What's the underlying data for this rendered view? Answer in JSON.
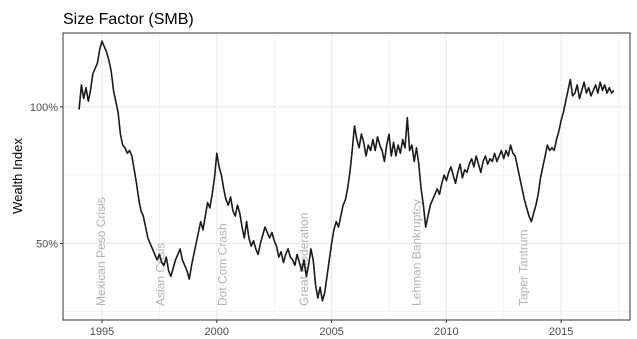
{
  "chart_data": {
    "type": "line",
    "title": "Size Factor (SMB)",
    "xlabel": "",
    "ylabel": "Wealth Index",
    "xlim": [
      1993.3,
      2018.0
    ],
    "ylim": [
      0.22,
      1.27
    ],
    "x_ticks": [
      1995,
      2000,
      2005,
      2010,
      2015
    ],
    "x_tick_labels": [
      "1995",
      "2000",
      "2005",
      "2010",
      "2015"
    ],
    "y_ticks": [
      0.5,
      1.0
    ],
    "y_tick_labels": [
      "50%",
      "100%"
    ],
    "y_minor_ticks": [
      0.25,
      0.75
    ],
    "grid": true,
    "colors": {
      "line": "#1a1a1a",
      "grid": "#ebebeb",
      "event_text": "#b3b3b3",
      "frame": "#333333"
    },
    "events": [
      {
        "label": "Mexican Peso Crisis",
        "x": 1994.95
      },
      {
        "label": "Asian Crisis",
        "x": 1997.55
      },
      {
        "label": "Dot Com Crash",
        "x": 2000.25
      },
      {
        "label": "Great Moderation",
        "x": 2003.8
      },
      {
        "label": "Lehman Bankruptcy",
        "x": 2008.7
      },
      {
        "label": "Taper Tantrum",
        "x": 2013.35
      }
    ],
    "series": [
      {
        "points": [
          [
            1994.0,
            0.99
          ],
          [
            1994.1,
            1.08
          ],
          [
            1994.2,
            1.03
          ],
          [
            1994.3,
            1.07
          ],
          [
            1994.4,
            1.02
          ],
          [
            1994.5,
            1.06
          ],
          [
            1994.6,
            1.12
          ],
          [
            1994.7,
            1.14
          ],
          [
            1994.8,
            1.16
          ],
          [
            1994.9,
            1.21
          ],
          [
            1995.0,
            1.24
          ],
          [
            1995.1,
            1.22
          ],
          [
            1995.2,
            1.2
          ],
          [
            1995.3,
            1.17
          ],
          [
            1995.4,
            1.13
          ],
          [
            1995.5,
            1.06
          ],
          [
            1995.6,
            1.02
          ],
          [
            1995.7,
            0.98
          ],
          [
            1995.8,
            0.9
          ],
          [
            1995.9,
            0.86
          ],
          [
            1996.0,
            0.85
          ],
          [
            1996.1,
            0.83
          ],
          [
            1996.2,
            0.84
          ],
          [
            1996.3,
            0.82
          ],
          [
            1996.4,
            0.77
          ],
          [
            1996.5,
            0.72
          ],
          [
            1996.6,
            0.66
          ],
          [
            1996.7,
            0.62
          ],
          [
            1996.8,
            0.6
          ],
          [
            1996.9,
            0.56
          ],
          [
            1997.0,
            0.52
          ],
          [
            1997.1,
            0.5
          ],
          [
            1997.2,
            0.48
          ],
          [
            1997.3,
            0.46
          ],
          [
            1997.4,
            0.44
          ],
          [
            1997.5,
            0.46
          ],
          [
            1997.6,
            0.43
          ],
          [
            1997.7,
            0.42
          ],
          [
            1997.8,
            0.45
          ],
          [
            1997.9,
            0.4
          ],
          [
            1998.0,
            0.38
          ],
          [
            1998.1,
            0.41
          ],
          [
            1998.2,
            0.44
          ],
          [
            1998.3,
            0.46
          ],
          [
            1998.4,
            0.48
          ],
          [
            1998.5,
            0.44
          ],
          [
            1998.6,
            0.42
          ],
          [
            1998.7,
            0.4
          ],
          [
            1998.8,
            0.37
          ],
          [
            1998.9,
            0.42
          ],
          [
            1999.0,
            0.46
          ],
          [
            1999.1,
            0.5
          ],
          [
            1999.2,
            0.54
          ],
          [
            1999.3,
            0.58
          ],
          [
            1999.4,
            0.55
          ],
          [
            1999.5,
            0.6
          ],
          [
            1999.6,
            0.65
          ],
          [
            1999.7,
            0.63
          ],
          [
            1999.8,
            0.68
          ],
          [
            1999.9,
            0.74
          ],
          [
            2000.0,
            0.83
          ],
          [
            2000.1,
            0.78
          ],
          [
            2000.2,
            0.75
          ],
          [
            2000.3,
            0.7
          ],
          [
            2000.4,
            0.66
          ],
          [
            2000.5,
            0.64
          ],
          [
            2000.6,
            0.67
          ],
          [
            2000.7,
            0.62
          ],
          [
            2000.8,
            0.6
          ],
          [
            2000.9,
            0.64
          ],
          [
            2001.0,
            0.61
          ],
          [
            2001.1,
            0.56
          ],
          [
            2001.2,
            0.52
          ],
          [
            2001.3,
            0.58
          ],
          [
            2001.4,
            0.52
          ],
          [
            2001.5,
            0.49
          ],
          [
            2001.6,
            0.51
          ],
          [
            2001.7,
            0.48
          ],
          [
            2001.8,
            0.46
          ],
          [
            2001.9,
            0.5
          ],
          [
            2002.0,
            0.53
          ],
          [
            2002.1,
            0.56
          ],
          [
            2002.2,
            0.54
          ],
          [
            2002.3,
            0.52
          ],
          [
            2002.4,
            0.54
          ],
          [
            2002.5,
            0.51
          ],
          [
            2002.6,
            0.49
          ],
          [
            2002.7,
            0.45
          ],
          [
            2002.8,
            0.47
          ],
          [
            2002.9,
            0.43
          ],
          [
            2003.0,
            0.46
          ],
          [
            2003.1,
            0.48
          ],
          [
            2003.2,
            0.45
          ],
          [
            2003.3,
            0.44
          ],
          [
            2003.4,
            0.42
          ],
          [
            2003.5,
            0.46
          ],
          [
            2003.6,
            0.43
          ],
          [
            2003.7,
            0.4
          ],
          [
            2003.8,
            0.44
          ],
          [
            2003.9,
            0.38
          ],
          [
            2004.0,
            0.42
          ],
          [
            2004.1,
            0.48
          ],
          [
            2004.2,
            0.44
          ],
          [
            2004.3,
            0.35
          ],
          [
            2004.4,
            0.3
          ],
          [
            2004.5,
            0.34
          ],
          [
            2004.6,
            0.29
          ],
          [
            2004.7,
            0.32
          ],
          [
            2004.8,
            0.38
          ],
          [
            2004.9,
            0.44
          ],
          [
            2005.0,
            0.5
          ],
          [
            2005.1,
            0.55
          ],
          [
            2005.2,
            0.58
          ],
          [
            2005.3,
            0.56
          ],
          [
            2005.4,
            0.6
          ],
          [
            2005.5,
            0.64
          ],
          [
            2005.6,
            0.66
          ],
          [
            2005.7,
            0.7
          ],
          [
            2005.8,
            0.76
          ],
          [
            2005.9,
            0.84
          ],
          [
            2006.0,
            0.93
          ],
          [
            2006.1,
            0.88
          ],
          [
            2006.2,
            0.85
          ],
          [
            2006.3,
            0.9
          ],
          [
            2006.4,
            0.87
          ],
          [
            2006.5,
            0.82
          ],
          [
            2006.6,
            0.86
          ],
          [
            2006.7,
            0.84
          ],
          [
            2006.8,
            0.88
          ],
          [
            2006.9,
            0.84
          ],
          [
            2007.0,
            0.89
          ],
          [
            2007.1,
            0.86
          ],
          [
            2007.2,
            0.84
          ],
          [
            2007.3,
            0.8
          ],
          [
            2007.4,
            0.86
          ],
          [
            2007.5,
            0.9
          ],
          [
            2007.6,
            0.82
          ],
          [
            2007.7,
            0.87
          ],
          [
            2007.8,
            0.82
          ],
          [
            2007.9,
            0.86
          ],
          [
            2008.0,
            0.83
          ],
          [
            2008.1,
            0.88
          ],
          [
            2008.2,
            0.85
          ],
          [
            2008.3,
            0.96
          ],
          [
            2008.4,
            0.84
          ],
          [
            2008.5,
            0.86
          ],
          [
            2008.6,
            0.8
          ],
          [
            2008.7,
            0.85
          ],
          [
            2008.8,
            0.79
          ],
          [
            2008.9,
            0.7
          ],
          [
            2009.0,
            0.64
          ],
          [
            2009.1,
            0.56
          ],
          [
            2009.2,
            0.6
          ],
          [
            2009.3,
            0.64
          ],
          [
            2009.4,
            0.66
          ],
          [
            2009.5,
            0.68
          ],
          [
            2009.6,
            0.7
          ],
          [
            2009.7,
            0.68
          ],
          [
            2009.8,
            0.72
          ],
          [
            2009.9,
            0.75
          ],
          [
            2010.0,
            0.73
          ],
          [
            2010.1,
            0.76
          ],
          [
            2010.2,
            0.78
          ],
          [
            2010.3,
            0.75
          ],
          [
            2010.4,
            0.72
          ],
          [
            2010.5,
            0.76
          ],
          [
            2010.6,
            0.79
          ],
          [
            2010.7,
            0.74
          ],
          [
            2010.8,
            0.77
          ],
          [
            2010.9,
            0.76
          ],
          [
            2011.0,
            0.79
          ],
          [
            2011.1,
            0.81
          ],
          [
            2011.2,
            0.78
          ],
          [
            2011.3,
            0.82
          ],
          [
            2011.4,
            0.79
          ],
          [
            2011.5,
            0.76
          ],
          [
            2011.6,
            0.8
          ],
          [
            2011.7,
            0.82
          ],
          [
            2011.8,
            0.79
          ],
          [
            2011.9,
            0.81
          ],
          [
            2012.0,
            0.8
          ],
          [
            2012.1,
            0.83
          ],
          [
            2012.2,
            0.8
          ],
          [
            2012.3,
            0.82
          ],
          [
            2012.4,
            0.84
          ],
          [
            2012.5,
            0.81
          ],
          [
            2012.6,
            0.84
          ],
          [
            2012.7,
            0.82
          ],
          [
            2012.8,
            0.86
          ],
          [
            2012.9,
            0.83
          ],
          [
            2013.0,
            0.82
          ],
          [
            2013.1,
            0.78
          ],
          [
            2013.2,
            0.74
          ],
          [
            2013.3,
            0.7
          ],
          [
            2013.4,
            0.66
          ],
          [
            2013.5,
            0.63
          ],
          [
            2013.6,
            0.6
          ],
          [
            2013.7,
            0.58
          ],
          [
            2013.8,
            0.61
          ],
          [
            2013.9,
            0.64
          ],
          [
            2014.0,
            0.68
          ],
          [
            2014.1,
            0.74
          ],
          [
            2014.2,
            0.78
          ],
          [
            2014.3,
            0.82
          ],
          [
            2014.4,
            0.86
          ],
          [
            2014.5,
            0.84
          ],
          [
            2014.6,
            0.85
          ],
          [
            2014.7,
            0.84
          ],
          [
            2014.8,
            0.88
          ],
          [
            2014.9,
            0.91
          ],
          [
            2015.0,
            0.95
          ],
          [
            2015.1,
            0.98
          ],
          [
            2015.2,
            1.02
          ],
          [
            2015.3,
            1.06
          ],
          [
            2015.4,
            1.1
          ],
          [
            2015.5,
            1.04
          ],
          [
            2015.6,
            1.05
          ],
          [
            2015.7,
            1.08
          ],
          [
            2015.8,
            1.03
          ],
          [
            2015.9,
            1.06
          ],
          [
            2016.0,
            1.09
          ],
          [
            2016.1,
            1.05
          ],
          [
            2016.2,
            1.07
          ],
          [
            2016.3,
            1.04
          ],
          [
            2016.4,
            1.06
          ],
          [
            2016.5,
            1.08
          ],
          [
            2016.6,
            1.05
          ],
          [
            2016.7,
            1.09
          ],
          [
            2016.8,
            1.06
          ],
          [
            2016.9,
            1.08
          ],
          [
            2017.0,
            1.05
          ],
          [
            2017.1,
            1.07
          ],
          [
            2017.2,
            1.05
          ],
          [
            2017.3,
            1.06
          ]
        ]
      }
    ]
  }
}
